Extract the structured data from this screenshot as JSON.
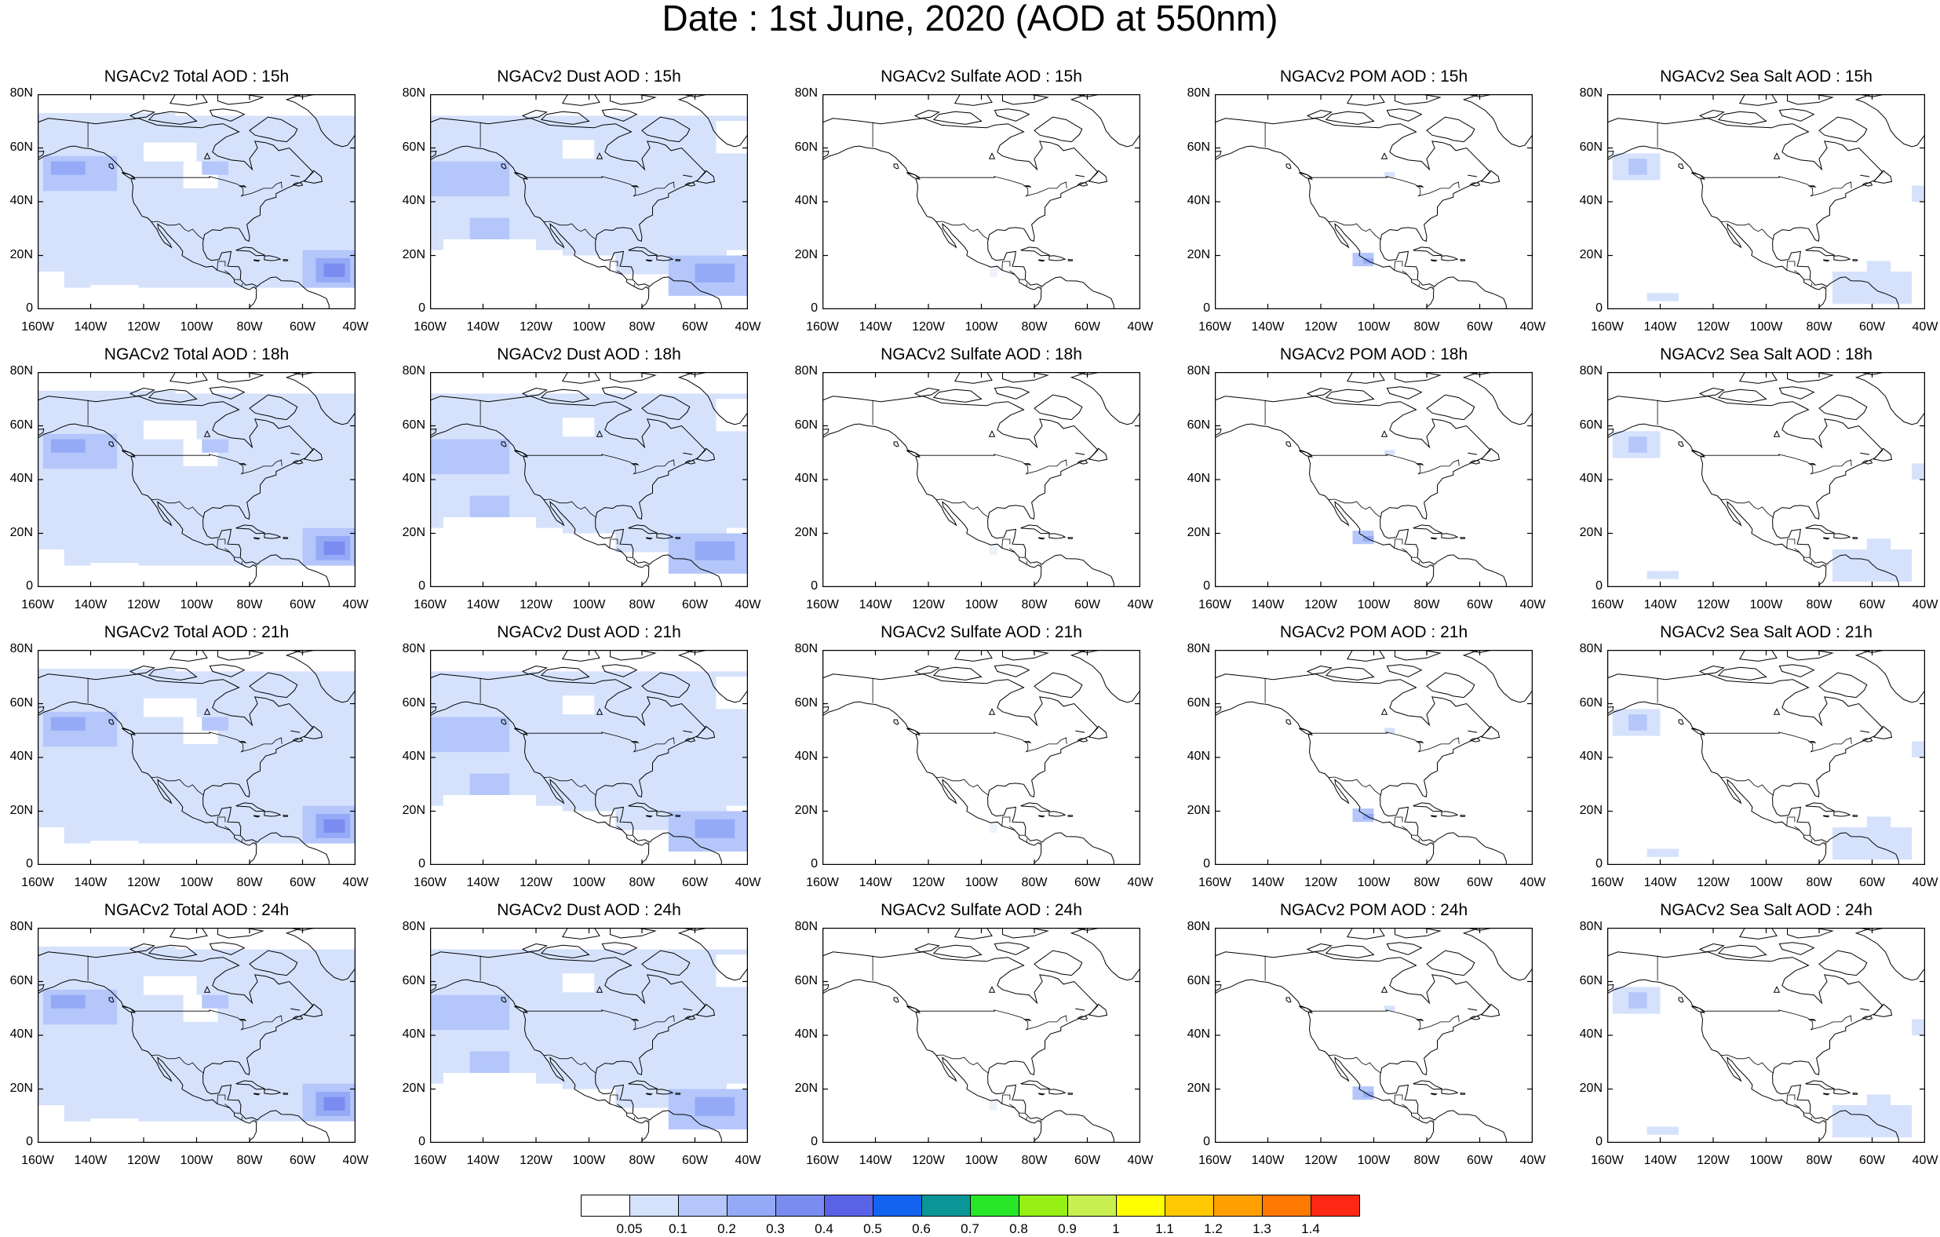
{
  "title": "Date : 1st June, 2020 (AOD at 550nm)",
  "rows": [
    {
      "time": "15h",
      "titles": [
        "NGACv2 Total AOD : 15h",
        "NGACv2 Dust AOD : 15h",
        "NGACv2 Sulfate AOD : 15h",
        "NGACv2 POM AOD : 15h",
        "NGACv2 Sea Salt AOD : 15h"
      ]
    },
    {
      "time": "18h",
      "titles": [
        "NGACv2 Total AOD : 18h",
        "NGACv2 Dust AOD : 18h",
        "NGACv2 Sulfate AOD : 18h",
        "NGACv2 POM AOD : 18h",
        "NGACv2 Sea Salt AOD : 18h"
      ]
    },
    {
      "time": "21h",
      "titles": [
        "NGACv2 Total AOD : 21h",
        "NGACv2 Dust AOD : 21h",
        "NGACv2 Sulfate AOD : 21h",
        "NGACv2 POM AOD : 21h",
        "NGACv2 Sea Salt AOD : 21h"
      ]
    },
    {
      "time": "24h",
      "titles": [
        "NGACv2 Total AOD : 24h",
        "NGACv2 Dust AOD : 24h",
        "NGACv2 Sulfate AOD : 24h",
        "NGACv2 POM AOD : 24h",
        "NGACv2 Sea Salt  AOD : 24h"
      ]
    }
  ],
  "map": {
    "lat_ticks": [
      "0",
      "20N",
      "40N",
      "60N",
      "80N"
    ],
    "lon_ticks": [
      "160W",
      "140W",
      "120W",
      "100W",
      "80W",
      "60W",
      "40W"
    ],
    "lon_range": [
      -160,
      -40
    ],
    "lat_range": [
      0,
      80
    ]
  },
  "colorbar": {
    "labels": [
      "0.05",
      "0.1",
      "0.2",
      "0.3",
      "0.4",
      "0.5",
      "0.6",
      "0.7",
      "0.8",
      "0.9",
      "1",
      "1.1",
      "1.2",
      "1.3",
      "1.4"
    ],
    "colors": [
      "#ffffff",
      "#d6e2fc",
      "#b4c6fa",
      "#95aaf7",
      "#7b8cf0",
      "#5a63e6",
      "#1463f0",
      "#0a9696",
      "#28e628",
      "#96f014",
      "#c8f050",
      "#ffff00",
      "#ffc800",
      "#ffa000",
      "#ff7800",
      "#ff2814"
    ]
  }
}
